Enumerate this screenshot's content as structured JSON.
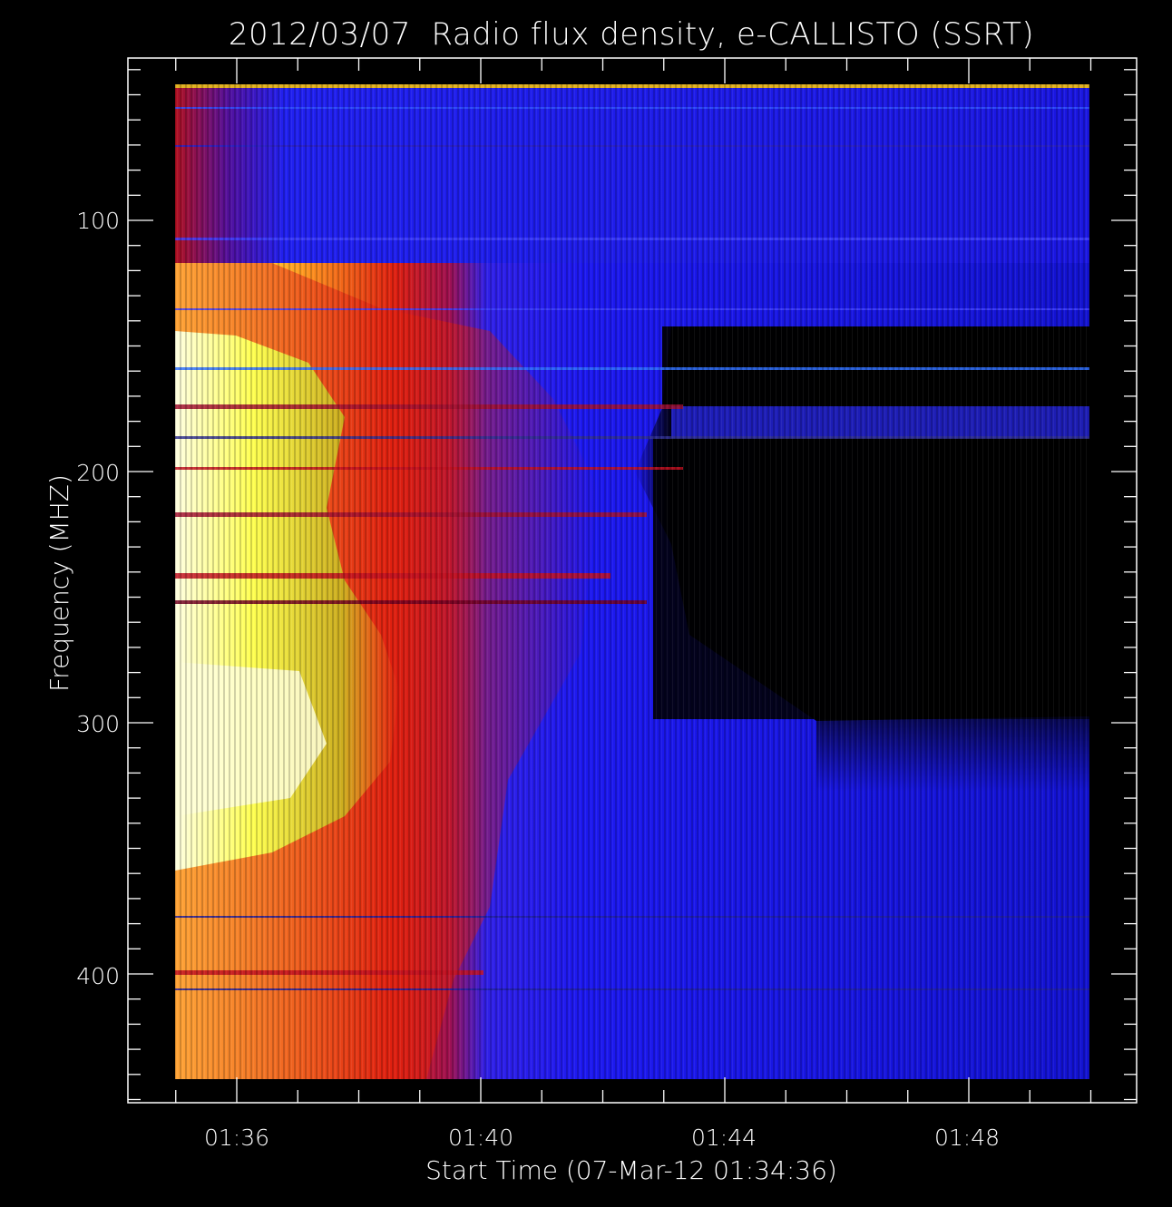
{
  "chart_data": {
    "type": "heatmap",
    "title": "2012/03/07  Radio flux density, e-CALLISTO (SSRT)",
    "xlabel": "Start Time (07-Mar-12 01:34:36)",
    "ylabel": "Frequency (MHZ)",
    "x_tick_labels": [
      "01:36",
      "01:40",
      "01:44",
      "01:48"
    ],
    "y_tick_labels": [
      "100",
      "200",
      "300",
      "400"
    ],
    "x_range": [
      "01:34:36",
      "01:49:30"
    ],
    "y_range": [
      45,
      440
    ],
    "y_inverted": true,
    "colormap": [
      "#000000",
      "#1a10c8",
      "#2020ff",
      "#8a1080",
      "#d01010",
      "#ff8c20",
      "#b8b820",
      "#ffff60",
      "#ffffe0"
    ],
    "burst_regions": [
      {
        "t_start": "01:34:36",
        "t_end": "01:40:30",
        "f_low": 120,
        "f_high": 440,
        "level": "high"
      },
      {
        "t_start": "01:34:36",
        "t_end": "01:37:30",
        "f_low": 150,
        "f_high": 360,
        "level": "max"
      },
      {
        "t_start": "01:43:00",
        "t_end": "01:49:30",
        "f_low": 160,
        "f_high": 295,
        "level": "min"
      }
    ]
  }
}
